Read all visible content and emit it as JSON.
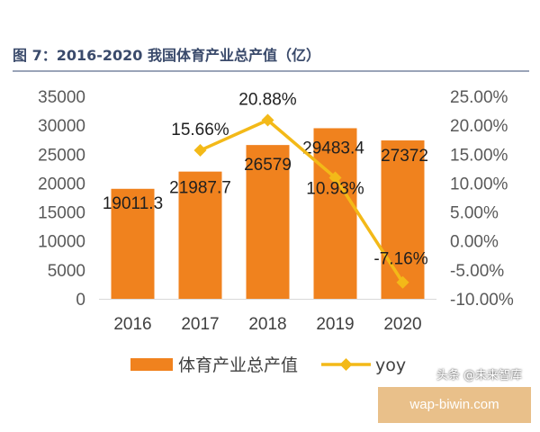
{
  "chart_data": {
    "type": "bar",
    "title": "图 7：2016-2020 我国体育产业总产值（亿）",
    "categories": [
      "2016",
      "2017",
      "2018",
      "2019",
      "2020"
    ],
    "series": [
      {
        "name": "体育产业总产值",
        "type": "bar",
        "axis": "left",
        "values": [
          19011.3,
          21987.7,
          26579,
          29483.4,
          27372
        ],
        "labels": [
          "19011.3",
          "21987.7",
          "26579",
          "29483.4",
          "27372"
        ],
        "color": "#f0821e"
      },
      {
        "name": "yoy",
        "type": "line",
        "axis": "right",
        "values": [
          15.66,
          20.88,
          10.93,
          -7.16
        ],
        "x": [
          "2017",
          "2018",
          "2019",
          "2020"
        ],
        "labels": [
          "15.66%",
          "20.88%",
          "10.93%",
          "-7.16%"
        ],
        "color": "#f3b918"
      }
    ],
    "left_axis": {
      "ylim": [
        0,
        35000
      ],
      "ticks": [
        "0",
        "5000",
        "10000",
        "15000",
        "20000",
        "25000",
        "30000",
        "35000"
      ]
    },
    "right_axis": {
      "ylim": [
        -10,
        25
      ],
      "ticks": [
        "-10.00%",
        "-5.00%",
        "0.00%",
        "5.00%",
        "10.00%",
        "15.00%",
        "20.00%",
        "25.00%"
      ]
    },
    "grid": false,
    "legend": "bottom"
  },
  "watermark": "头条 @未来智库",
  "badge": "wap-biwin.com"
}
